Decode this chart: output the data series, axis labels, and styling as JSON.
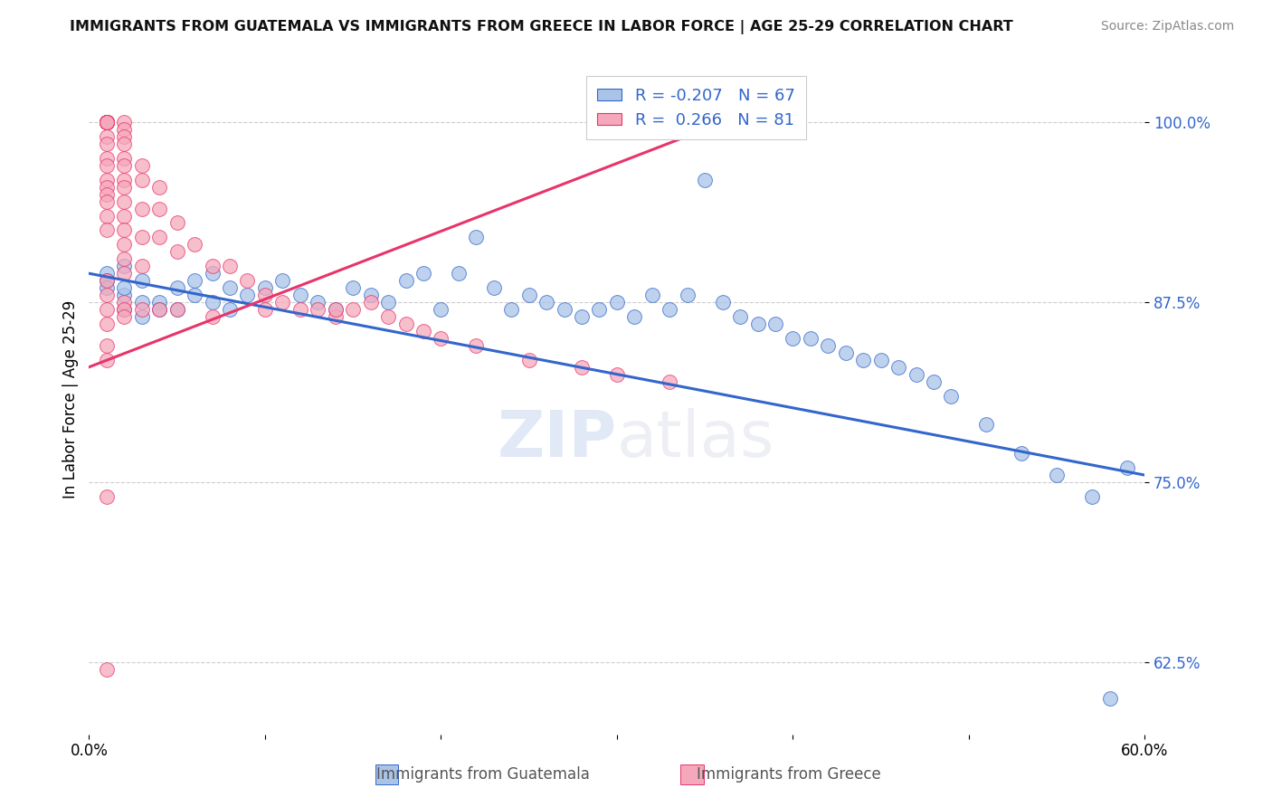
{
  "title": "IMMIGRANTS FROM GUATEMALA VS IMMIGRANTS FROM GREECE IN LABOR FORCE | AGE 25-29 CORRELATION CHART",
  "source": "Source: ZipAtlas.com",
  "ylabel": "In Labor Force | Age 25-29",
  "xmin": 0.0,
  "xmax": 0.6,
  "ymin": 0.575,
  "ymax": 1.04,
  "yticks": [
    0.625,
    0.75,
    0.875,
    1.0
  ],
  "ytick_labels": [
    "62.5%",
    "75.0%",
    "87.5%",
    "100.0%"
  ],
  "xticks": [
    0.0,
    0.1,
    0.2,
    0.3,
    0.4,
    0.5,
    0.6
  ],
  "xtick_labels": [
    "0.0%",
    "",
    "",
    "",
    "",
    "",
    "60.0%"
  ],
  "color_blue": "#aac4e8",
  "color_pink": "#f5a8bb",
  "line_blue": "#3366cc",
  "line_pink": "#e8346a",
  "watermark": "ZIPatlas",
  "blue_trend_x0": 0.0,
  "blue_trend_y0": 0.895,
  "blue_trend_x1": 0.6,
  "blue_trend_y1": 0.755,
  "pink_trend_x0": 0.0,
  "pink_trend_y0": 0.83,
  "pink_trend_x1": 0.35,
  "pink_trend_y1": 0.995,
  "blue_scatter_x": [
    0.01,
    0.01,
    0.01,
    0.02,
    0.02,
    0.02,
    0.02,
    0.03,
    0.03,
    0.03,
    0.04,
    0.04,
    0.05,
    0.05,
    0.06,
    0.06,
    0.07,
    0.07,
    0.08,
    0.08,
    0.09,
    0.1,
    0.11,
    0.12,
    0.13,
    0.14,
    0.15,
    0.16,
    0.17,
    0.18,
    0.19,
    0.2,
    0.21,
    0.22,
    0.23,
    0.24,
    0.25,
    0.26,
    0.27,
    0.28,
    0.29,
    0.3,
    0.31,
    0.32,
    0.33,
    0.34,
    0.35,
    0.36,
    0.37,
    0.38,
    0.39,
    0.4,
    0.41,
    0.42,
    0.43,
    0.44,
    0.45,
    0.46,
    0.47,
    0.48,
    0.49,
    0.51,
    0.53,
    0.55,
    0.57,
    0.59,
    0.58
  ],
  "blue_scatter_y": [
    0.895,
    0.89,
    0.885,
    0.9,
    0.88,
    0.885,
    0.87,
    0.89,
    0.875,
    0.865,
    0.875,
    0.87,
    0.885,
    0.87,
    0.89,
    0.88,
    0.895,
    0.875,
    0.885,
    0.87,
    0.88,
    0.885,
    0.89,
    0.88,
    0.875,
    0.87,
    0.885,
    0.88,
    0.875,
    0.89,
    0.895,
    0.87,
    0.895,
    0.92,
    0.885,
    0.87,
    0.88,
    0.875,
    0.87,
    0.865,
    0.87,
    0.875,
    0.865,
    0.88,
    0.87,
    0.88,
    0.96,
    0.875,
    0.865,
    0.86,
    0.86,
    0.85,
    0.85,
    0.845,
    0.84,
    0.835,
    0.835,
    0.83,
    0.825,
    0.82,
    0.81,
    0.79,
    0.77,
    0.755,
    0.74,
    0.76,
    0.6
  ],
  "pink_scatter_x": [
    0.01,
    0.01,
    0.01,
    0.01,
    0.01,
    0.01,
    0.01,
    0.01,
    0.01,
    0.01,
    0.01,
    0.01,
    0.01,
    0.01,
    0.01,
    0.01,
    0.01,
    0.01,
    0.01,
    0.01,
    0.02,
    0.02,
    0.02,
    0.02,
    0.02,
    0.02,
    0.02,
    0.02,
    0.02,
    0.02,
    0.02,
    0.02,
    0.02,
    0.02,
    0.03,
    0.03,
    0.03,
    0.03,
    0.03,
    0.04,
    0.04,
    0.04,
    0.05,
    0.05,
    0.06,
    0.07,
    0.08,
    0.09,
    0.1,
    0.11,
    0.12,
    0.13,
    0.14,
    0.15,
    0.16,
    0.17,
    0.18,
    0.19,
    0.2,
    0.22,
    0.25,
    0.28,
    0.3,
    0.33,
    0.01,
    0.01,
    0.01,
    0.01,
    0.01,
    0.01,
    0.02,
    0.02,
    0.02,
    0.03,
    0.04,
    0.05,
    0.07,
    0.1,
    0.14,
    0.01,
    0.01
  ],
  "pink_scatter_y": [
    1.0,
    1.0,
    1.0,
    1.0,
    1.0,
    1.0,
    1.0,
    1.0,
    1.0,
    1.0,
    0.99,
    0.985,
    0.975,
    0.97,
    0.96,
    0.955,
    0.95,
    0.945,
    0.935,
    0.925,
    1.0,
    0.995,
    0.99,
    0.985,
    0.975,
    0.97,
    0.96,
    0.955,
    0.945,
    0.935,
    0.925,
    0.915,
    0.905,
    0.895,
    0.97,
    0.96,
    0.94,
    0.92,
    0.9,
    0.955,
    0.94,
    0.92,
    0.93,
    0.91,
    0.915,
    0.9,
    0.9,
    0.89,
    0.88,
    0.875,
    0.87,
    0.87,
    0.865,
    0.87,
    0.875,
    0.865,
    0.86,
    0.855,
    0.85,
    0.845,
    0.835,
    0.83,
    0.825,
    0.82,
    0.89,
    0.88,
    0.87,
    0.86,
    0.845,
    0.835,
    0.875,
    0.87,
    0.865,
    0.87,
    0.87,
    0.87,
    0.865,
    0.87,
    0.87,
    0.74,
    0.62
  ]
}
